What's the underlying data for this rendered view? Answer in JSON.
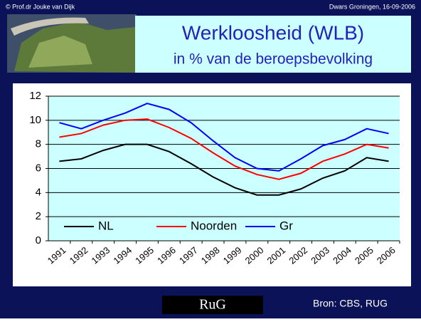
{
  "header": {
    "left": "© Prof.dr Jouke van Dijk",
    "right": "Dwars Groningen, 16-09-2006"
  },
  "slide_title": {
    "line1": "Werkloosheid (WLB)",
    "line2": "in % van de beroepsbevolking"
  },
  "chart_data": {
    "type": "line",
    "categories": [
      "1991",
      "1992",
      "1993",
      "1994",
      "1995",
      "1996",
      "1997",
      "1998",
      "1999",
      "2000",
      "2001",
      "2002",
      "2003",
      "2004",
      "2005",
      "2006"
    ],
    "series": [
      {
        "name": "NL",
        "color": "#000000",
        "values": [
          6.6,
          6.8,
          7.5,
          8.0,
          8.0,
          7.4,
          6.4,
          5.3,
          4.4,
          3.8,
          3.8,
          4.3,
          5.2,
          5.8,
          6.9,
          6.6
        ]
      },
      {
        "name": "Noorden",
        "color": "#ff0000",
        "values": [
          8.6,
          8.9,
          9.6,
          10.0,
          10.1,
          9.4,
          8.5,
          7.3,
          6.2,
          5.5,
          5.1,
          5.6,
          6.6,
          7.2,
          8.0,
          7.7
        ]
      },
      {
        "name": "Gr",
        "color": "#0000ff",
        "values": [
          9.8,
          9.3,
          10.0,
          10.6,
          11.4,
          10.9,
          9.8,
          8.3,
          6.9,
          6.0,
          5.8,
          6.8,
          7.9,
          8.4,
          9.3,
          8.9
        ]
      }
    ],
    "ylim": [
      0,
      12
    ],
    "yticks": [
      0,
      2,
      4,
      6,
      8,
      10,
      12
    ],
    "grid": true,
    "legend": "bottom"
  },
  "footer": {
    "logo": "RuG",
    "source": "Bron: CBS, RUG"
  }
}
